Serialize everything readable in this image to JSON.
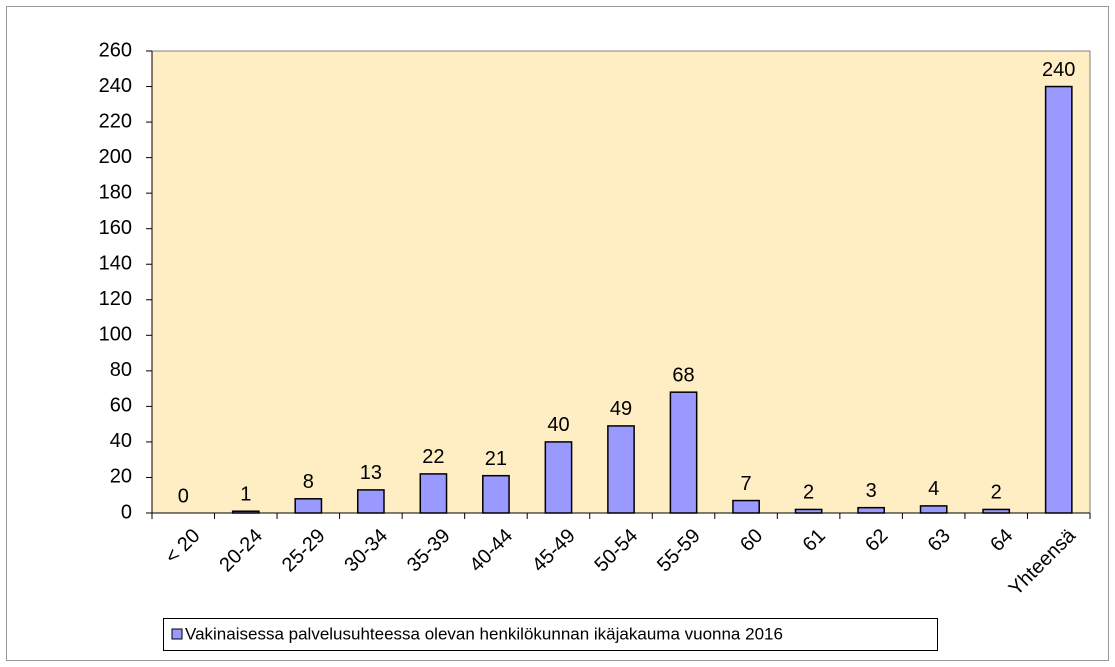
{
  "chart_data": {
    "type": "bar",
    "categories": [
      "< 20",
      "20-24",
      "25-29",
      "30-34",
      "35-39",
      "40-44",
      "45-49",
      "50-54",
      "55-59",
      "60",
      "61",
      "62",
      "63",
      "64",
      "Yhteensä"
    ],
    "series": [
      {
        "name": "Vakinaisessa palvelusuhteessa olevan henkilökunnan ikäjakauma vuonna 2016",
        "color": "#9999ff",
        "values": [
          0,
          1,
          8,
          13,
          22,
          21,
          40,
          49,
          68,
          7,
          2,
          3,
          4,
          2,
          240
        ]
      }
    ],
    "ylim": [
      0,
      260
    ],
    "yticks": [
      0,
      20,
      40,
      60,
      80,
      100,
      120,
      140,
      160,
      180,
      200,
      220,
      240,
      260
    ],
    "grid": false,
    "legend": "bottom",
    "plot_background": "#ffeec4"
  }
}
